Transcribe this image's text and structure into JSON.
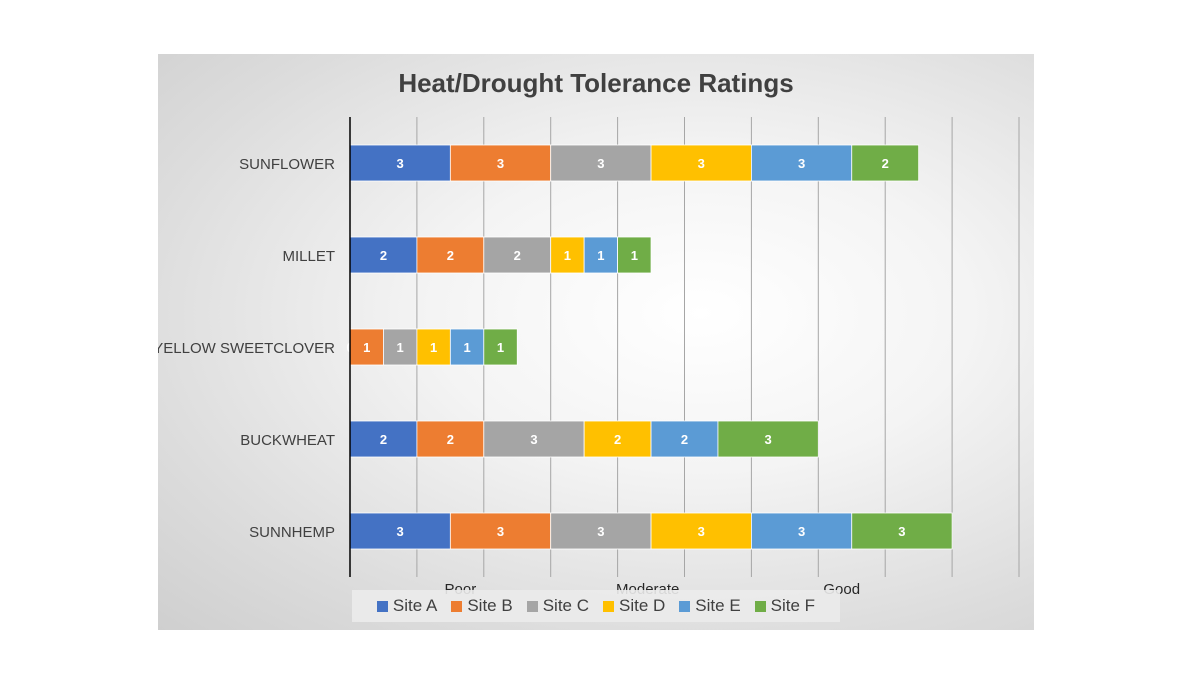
{
  "chart_data": {
    "type": "bar",
    "orientation": "horizontal",
    "stacked": true,
    "title": "Heat/Drought Tolerance Ratings",
    "categories": [
      "SUNFLOWER",
      "MILLET",
      "YELLOW SWEETCLOVER",
      "BUCKWHEAT",
      "SUNNHEMP"
    ],
    "series": [
      {
        "name": "Site A",
        "color": "#4472c4",
        "values": [
          3,
          2,
          0,
          2,
          3
        ]
      },
      {
        "name": "Site B",
        "color": "#ed7d31",
        "values": [
          3,
          2,
          1,
          2,
          3
        ]
      },
      {
        "name": "Site C",
        "color": "#a5a5a5",
        "values": [
          3,
          2,
          1,
          3,
          3
        ]
      },
      {
        "name": "Site D",
        "color": "#ffc000",
        "values": [
          3,
          1,
          1,
          2,
          3
        ]
      },
      {
        "name": "Site E",
        "color": "#5b9bd5",
        "values": [
          3,
          1,
          1,
          2,
          3
        ]
      },
      {
        "name": "Site F",
        "color": "#70ad47",
        "values": [
          2,
          1,
          1,
          3,
          3
        ]
      }
    ],
    "xlim": [
      0,
      20
    ],
    "x_tick_labels": [
      {
        "label": "Poor",
        "value": 3.3
      },
      {
        "label": "Moderate",
        "value": 8.9
      },
      {
        "label": "Good",
        "value": 14.7
      }
    ],
    "grid": true,
    "data_labels": true,
    "legend": "bottom"
  }
}
